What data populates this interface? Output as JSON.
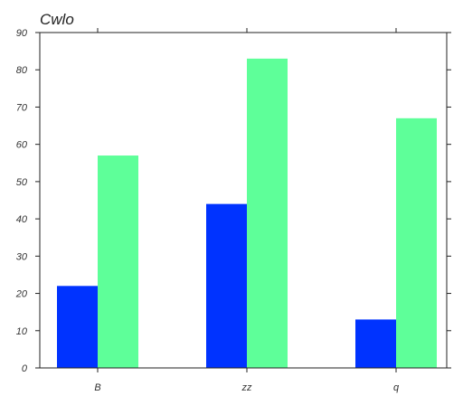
{
  "chart_data": {
    "type": "bar",
    "title": "Cwlo",
    "xlabel": "",
    "ylabel": "",
    "categories": [
      "B",
      "zz",
      "q"
    ],
    "series": [
      {
        "values": [
          22,
          44,
          13
        ],
        "color": "#0033ff"
      },
      {
        "values": [
          57,
          83,
          67
        ],
        "color": "#5eff99"
      }
    ],
    "ylim": [
      0,
      90
    ],
    "yticks": [
      0,
      10,
      20,
      30,
      40,
      50,
      60,
      70,
      80,
      90
    ],
    "grid": false,
    "legend": "none"
  }
}
